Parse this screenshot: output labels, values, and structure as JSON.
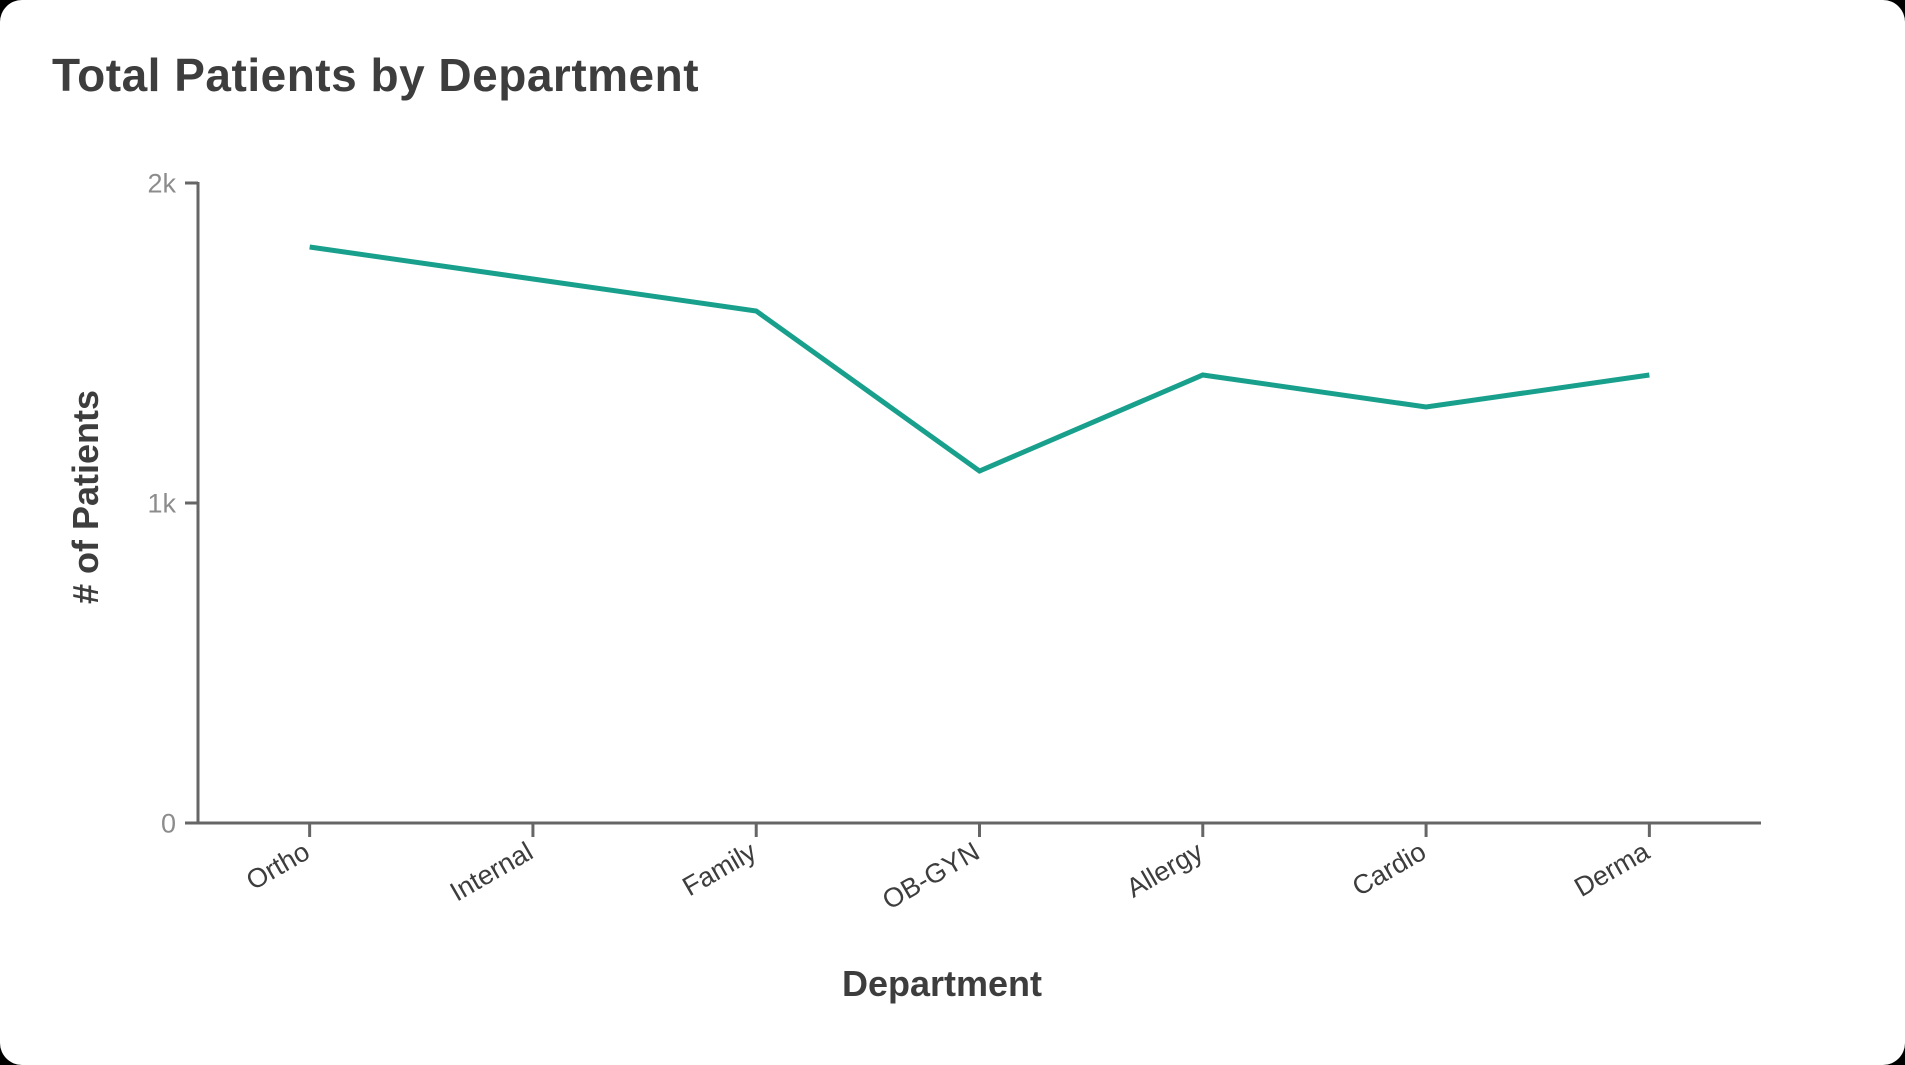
{
  "page": {
    "background_color": "#000000",
    "card_background_color": "#ffffff"
  },
  "header": {
    "title": "Total Patients by Department"
  },
  "chart_data": {
    "type": "line",
    "title": "Total Patients by Department",
    "xlabel": "Department",
    "ylabel": "# of Patients",
    "categories": [
      "Ortho",
      "Internal",
      "Family",
      "OB-GYN",
      "Allergy",
      "Cardio",
      "Derma"
    ],
    "values": [
      1800,
      1700,
      1600,
      1100,
      1400,
      1300,
      1400
    ],
    "ylim": [
      0,
      2000
    ],
    "yticks": [
      {
        "value": 0,
        "label": "0"
      },
      {
        "value": 1000,
        "label": "1k"
      },
      {
        "value": 2000,
        "label": "2k"
      }
    ],
    "grid": false,
    "legend": false,
    "x_label_rotation_deg": -30,
    "colors": {
      "line": "#18a08d",
      "axis": "#666666",
      "numeric_tick_label": "#8c8c8c",
      "category_tick_label": "#3d3d3d",
      "axis_title": "#3d3d3d",
      "title": "#3d3d3d"
    }
  }
}
